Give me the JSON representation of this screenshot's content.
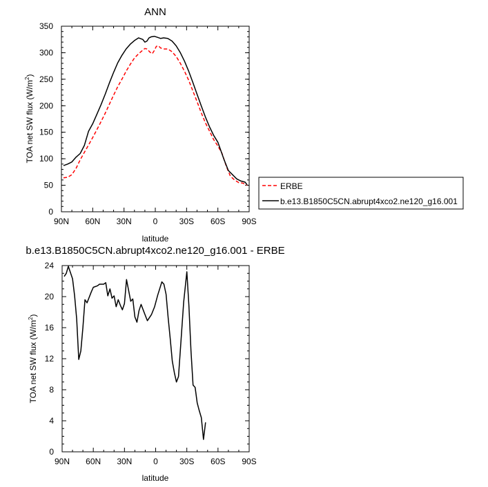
{
  "colors": {
    "axis": "#000000",
    "series_model": "#000000",
    "series_obs": "#ff0000",
    "background": "#ffffff"
  },
  "chart_data": [
    {
      "type": "line",
      "title": "ANN",
      "xlabel": "latitude",
      "ylabel": "TOA net SW flux (W/m²)",
      "ylabel_main": "TOA net SW flux (W/m",
      "ylabel_sup": "2",
      "ylabel_close": ")",
      "xlim": [
        90,
        -90
      ],
      "ylim": [
        0,
        350
      ],
      "x_ticks": [
        90,
        60,
        30,
        0,
        -30,
        -60,
        -90
      ],
      "x_tick_labels": [
        "90N",
        "60N",
        "30N",
        "0",
        "30S",
        "60S",
        "90S"
      ],
      "y_ticks": [
        0,
        50,
        100,
        150,
        200,
        250,
        300,
        350
      ],
      "y_tick_labels": [
        "0",
        "50",
        "100",
        "150",
        "200",
        "250",
        "300",
        "350"
      ],
      "legend_placement": "right",
      "series": [
        {
          "name": "ERBE",
          "color": "#ff0000",
          "dash": true,
          "points": [
            [
              88,
              64
            ],
            [
              84,
              65
            ],
            [
              80,
              70
            ],
            [
              76,
              82
            ],
            [
              72,
              98
            ],
            [
              68,
              112
            ],
            [
              64,
              126
            ],
            [
              60,
              140
            ],
            [
              56,
              155
            ],
            [
              52,
              170
            ],
            [
              48,
              186
            ],
            [
              44,
              203
            ],
            [
              40,
              220
            ],
            [
              36,
              236
            ],
            [
              32,
              250
            ],
            [
              28,
              265
            ],
            [
              24,
              278
            ],
            [
              20,
              290
            ],
            [
              16,
              298
            ],
            [
              12,
              305
            ],
            [
              10,
              308
            ],
            [
              8,
              307
            ],
            [
              5,
              301
            ],
            [
              3,
              298
            ],
            [
              1,
              304
            ],
            [
              -1,
              312
            ],
            [
              -3,
              313
            ],
            [
              -5,
              309
            ],
            [
              -8,
              307
            ],
            [
              -12,
              307
            ],
            [
              -16,
              302
            ],
            [
              -20,
              293
            ],
            [
              -24,
              280
            ],
            [
              -28,
              265
            ],
            [
              -32,
              248
            ],
            [
              -36,
              228
            ],
            [
              -40,
              208
            ],
            [
              -44,
              187
            ],
            [
              -48,
              168
            ],
            [
              -52,
              152
            ],
            [
              -56,
              136
            ],
            [
              -60,
              124
            ],
            [
              -64,
              110
            ],
            [
              -68,
              86
            ],
            [
              -72,
              67
            ],
            [
              -76,
              60
            ],
            [
              -80,
              55
            ],
            [
              -84,
              54
            ],
            [
              -88,
              50
            ]
          ]
        },
        {
          "name": "b.e13.B1850C5CN.abrupt4xco2.ne120_g16.001",
          "color": "#000000",
          "dash": false,
          "points": [
            [
              88,
              87
            ],
            [
              84,
              90
            ],
            [
              80,
              94
            ],
            [
              76,
              103
            ],
            [
              72,
              110
            ],
            [
              68,
              125
            ],
            [
              64,
              152
            ],
            [
              60,
              166
            ],
            [
              56,
              184
            ],
            [
              52,
              202
            ],
            [
              48,
              222
            ],
            [
              44,
              243
            ],
            [
              40,
              263
            ],
            [
              36,
              281
            ],
            [
              32,
              295
            ],
            [
              28,
              307
            ],
            [
              24,
              316
            ],
            [
              20,
              323
            ],
            [
              16,
              328
            ],
            [
              12,
              325
            ],
            [
              10,
              320
            ],
            [
              8,
              322
            ],
            [
              6,
              328
            ],
            [
              4,
              330
            ],
            [
              1,
              331
            ],
            [
              -2,
              329
            ],
            [
              -5,
              327
            ],
            [
              -8,
              328
            ],
            [
              -12,
              327
            ],
            [
              -16,
              322
            ],
            [
              -20,
              313
            ],
            [
              -24,
              300
            ],
            [
              -28,
              284
            ],
            [
              -32,
              265
            ],
            [
              -36,
              244
            ],
            [
              -40,
              222
            ],
            [
              -44,
              200
            ],
            [
              -48,
              179
            ],
            [
              -52,
              160
            ],
            [
              -56,
              144
            ],
            [
              -60,
              131
            ],
            [
              -62,
              120
            ],
            [
              -66,
              98
            ],
            [
              -70,
              78
            ],
            [
              -74,
              70
            ],
            [
              -78,
              62
            ],
            [
              -82,
              58
            ],
            [
              -86,
              56
            ],
            [
              -88,
              51
            ]
          ]
        }
      ]
    },
    {
      "type": "line",
      "title": "b.e13.B1850C5CN.abrupt4xco2.ne120_g16.001 - ERBE",
      "xlabel": "latitude",
      "ylabel": "TOA net SW flux (W/m²)",
      "ylabel_main": "TOA net SW flux (W/m",
      "ylabel_sup": "2",
      "ylabel_close": ")",
      "xlim": [
        90,
        -90
      ],
      "ylim": [
        0,
        24
      ],
      "x_ticks": [
        90,
        60,
        30,
        0,
        -30,
        -60,
        -90
      ],
      "x_tick_labels": [
        "90N",
        "60N",
        "30N",
        "0",
        "30S",
        "60S",
        "90S"
      ],
      "y_ticks": [
        0,
        4,
        8,
        12,
        16,
        20,
        24
      ],
      "y_tick_labels": [
        "0",
        "4",
        "8",
        "12",
        "16",
        "20",
        "24"
      ],
      "series": [
        {
          "color": "#000000",
          "dash": false,
          "points": [
            [
              88,
              22.6
            ],
            [
              86,
              23.0
            ],
            [
              84,
              23.9
            ],
            [
              80,
              22.3
            ],
            [
              78,
              20.1
            ],
            [
              76,
              17.1
            ],
            [
              74,
              11.9
            ],
            [
              72,
              13.0
            ],
            [
              70,
              16.0
            ],
            [
              68,
              19.6
            ],
            [
              66,
              19.2
            ],
            [
              62,
              20.6
            ],
            [
              60,
              21.2
            ],
            [
              56,
              21.4
            ],
            [
              54,
              21.6
            ],
            [
              50,
              21.6
            ],
            [
              48,
              21.8
            ],
            [
              46,
              20.1
            ],
            [
              44,
              21.0
            ],
            [
              42,
              19.8
            ],
            [
              40,
              20.1
            ],
            [
              38,
              18.7
            ],
            [
              36,
              19.6
            ],
            [
              34,
              18.9
            ],
            [
              32,
              18.3
            ],
            [
              30,
              19.1
            ],
            [
              28,
              22.2
            ],
            [
              24,
              19.4
            ],
            [
              22,
              19.7
            ],
            [
              20,
              17.4
            ],
            [
              18,
              16.7
            ],
            [
              16,
              18.2
            ],
            [
              14,
              19.0
            ],
            [
              10,
              17.6
            ],
            [
              8,
              16.9
            ],
            [
              6,
              17.3
            ],
            [
              4,
              17.7
            ],
            [
              1,
              18.7
            ],
            [
              -2,
              20.2
            ],
            [
              -6,
              21.9
            ],
            [
              -8,
              21.6
            ],
            [
              -10,
              20.3
            ],
            [
              -12,
              17.3
            ],
            [
              -14,
              14.6
            ],
            [
              -16,
              11.7
            ],
            [
              -18,
              10.2
            ],
            [
              -20,
              9.0
            ],
            [
              -22,
              9.7
            ],
            [
              -24,
              13.5
            ],
            [
              -27,
              19.3
            ],
            [
              -30,
              23.2
            ],
            [
              -32,
              18.8
            ],
            [
              -34,
              13.0
            ],
            [
              -36,
              8.6
            ],
            [
              -38,
              8.3
            ],
            [
              -40,
              6.3
            ],
            [
              -42,
              5.3
            ],
            [
              -44,
              4.4
            ],
            [
              -46,
              1.6
            ],
            [
              -48,
              3.8
            ]
          ]
        }
      ]
    }
  ]
}
